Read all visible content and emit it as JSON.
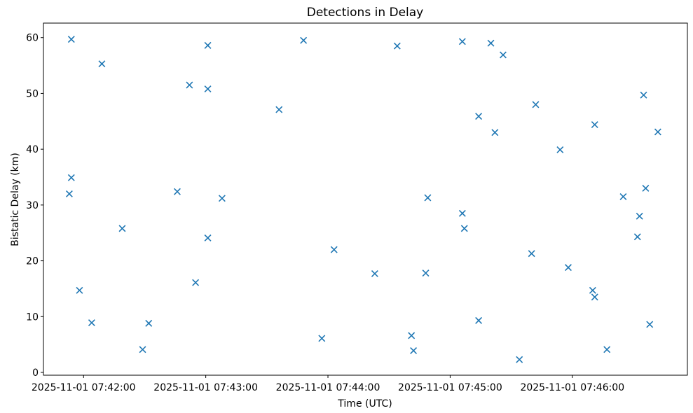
{
  "chart_data": {
    "type": "scatter",
    "title": "Detections in Delay",
    "xlabel": "Time (UTC)",
    "ylabel": "Bistatic Delay (km)",
    "marker": "x",
    "marker_color": "#1f77b4",
    "grid": false,
    "legend": null,
    "x_tick_labels": [
      "2025-11-01 07:42:00",
      "2025-11-01 07:43:00",
      "2025-11-01 07:44:00",
      "2025-11-01 07:45:00",
      "2025-11-01 07:46:00"
    ],
    "y_ticks": [
      0,
      10,
      20,
      30,
      40,
      50,
      60
    ],
    "xlim": [
      "2025-11-01 07:41:40.3",
      "2025-11-01 07:46:56.5"
    ],
    "ylim": [
      -0.5,
      62.6
    ],
    "points": [
      {
        "time": "2025-11-01 07:41:53",
        "delay_km": 32.0
      },
      {
        "time": "2025-11-01 07:41:54",
        "delay_km": 34.9
      },
      {
        "time": "2025-11-01 07:41:54",
        "delay_km": 59.7
      },
      {
        "time": "2025-11-01 07:41:58",
        "delay_km": 14.7
      },
      {
        "time": "2025-11-01 07:42:04",
        "delay_km": 8.9
      },
      {
        "time": "2025-11-01 07:42:09",
        "delay_km": 55.3
      },
      {
        "time": "2025-11-01 07:42:19",
        "delay_km": 25.8
      },
      {
        "time": "2025-11-01 07:42:29",
        "delay_km": 4.1
      },
      {
        "time": "2025-11-01 07:42:32",
        "delay_km": 8.8
      },
      {
        "time": "2025-11-01 07:42:46",
        "delay_km": 32.4
      },
      {
        "time": "2025-11-01 07:42:52",
        "delay_km": 51.5
      },
      {
        "time": "2025-11-01 07:42:55",
        "delay_km": 16.1
      },
      {
        "time": "2025-11-01 07:43:01",
        "delay_km": 58.6
      },
      {
        "time": "2025-11-01 07:43:01",
        "delay_km": 50.8
      },
      {
        "time": "2025-11-01 07:43:01",
        "delay_km": 24.1
      },
      {
        "time": "2025-11-01 07:43:08",
        "delay_km": 31.2
      },
      {
        "time": "2025-11-01 07:43:36",
        "delay_km": 47.1
      },
      {
        "time": "2025-11-01 07:43:48",
        "delay_km": 59.5
      },
      {
        "time": "2025-11-01 07:43:57",
        "delay_km": 6.1
      },
      {
        "time": "2025-11-01 07:44:03",
        "delay_km": 22.0
      },
      {
        "time": "2025-11-01 07:44:23",
        "delay_km": 17.7
      },
      {
        "time": "2025-11-01 07:44:34",
        "delay_km": 58.5
      },
      {
        "time": "2025-11-01 07:44:41",
        "delay_km": 6.6
      },
      {
        "time": "2025-11-01 07:44:42",
        "delay_km": 3.9
      },
      {
        "time": "2025-11-01 07:44:48",
        "delay_km": 17.8
      },
      {
        "time": "2025-11-01 07:44:49",
        "delay_km": 31.3
      },
      {
        "time": "2025-11-01 07:45:06",
        "delay_km": 59.3
      },
      {
        "time": "2025-11-01 07:45:06",
        "delay_km": 28.5
      },
      {
        "time": "2025-11-01 07:45:07",
        "delay_km": 25.8
      },
      {
        "time": "2025-11-01 07:45:14",
        "delay_km": 45.9
      },
      {
        "time": "2025-11-01 07:45:14",
        "delay_km": 9.3
      },
      {
        "time": "2025-11-01 07:45:20",
        "delay_km": 59.0
      },
      {
        "time": "2025-11-01 07:45:22",
        "delay_km": 43.0
      },
      {
        "time": "2025-11-01 07:45:26",
        "delay_km": 56.9
      },
      {
        "time": "2025-11-01 07:45:34",
        "delay_km": 2.3
      },
      {
        "time": "2025-11-01 07:45:40",
        "delay_km": 21.3
      },
      {
        "time": "2025-11-01 07:45:42",
        "delay_km": 48.0
      },
      {
        "time": "2025-11-01 07:45:54",
        "delay_km": 39.9
      },
      {
        "time": "2025-11-01 07:45:58",
        "delay_km": 18.8
      },
      {
        "time": "2025-11-01 07:46:10",
        "delay_km": 14.7
      },
      {
        "time": "2025-11-01 07:46:11",
        "delay_km": 44.4
      },
      {
        "time": "2025-11-01 07:46:11",
        "delay_km": 13.5
      },
      {
        "time": "2025-11-01 07:46:17",
        "delay_km": 4.1
      },
      {
        "time": "2025-11-01 07:46:25",
        "delay_km": 31.5
      },
      {
        "time": "2025-11-01 07:46:32",
        "delay_km": 24.3
      },
      {
        "time": "2025-11-01 07:46:33",
        "delay_km": 28.0
      },
      {
        "time": "2025-11-01 07:46:35",
        "delay_km": 49.7
      },
      {
        "time": "2025-11-01 07:46:36",
        "delay_km": 33.0
      },
      {
        "time": "2025-11-01 07:46:38",
        "delay_km": 8.6
      },
      {
        "time": "2025-11-01 07:46:42",
        "delay_km": 43.1
      }
    ]
  }
}
